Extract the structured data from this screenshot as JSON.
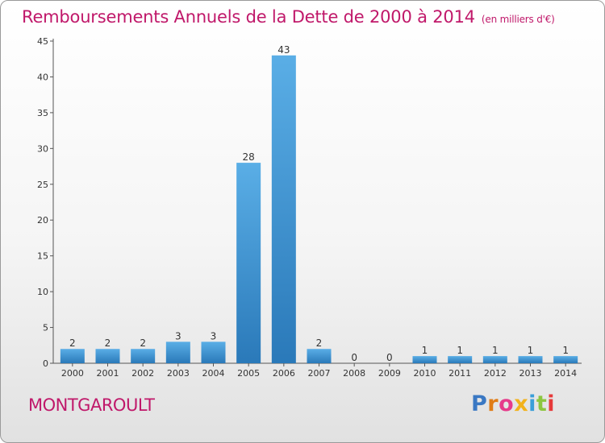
{
  "header": {
    "title": "Remboursements Annuels de la Dette de 2000 à 2014",
    "unit": "(en milliers d'€)"
  },
  "commune": "MONTGAROULT",
  "logo": {
    "letters": [
      "P",
      "r",
      "o",
      "x",
      "i",
      "t",
      "i"
    ],
    "colors": [
      "#3a78c3",
      "#e07c16",
      "#e63a8a",
      "#f2b21c",
      "#3a9fd8",
      "#8cc63f",
      "#e63a3a"
    ],
    "name": "Proxiti"
  },
  "colors": {
    "bar_top": "#5aaee6",
    "bar_bottom": "#2a79b9",
    "axis": "#555555",
    "title": "#c0186a"
  },
  "chart_data": {
    "type": "bar",
    "title": "Remboursements Annuels de la Dette de 2000 à 2014",
    "subtitle": "(en milliers d'€)",
    "xlabel": "",
    "ylabel": "",
    "categories": [
      "2000",
      "2001",
      "2002",
      "2003",
      "2004",
      "2005",
      "2006",
      "2007",
      "2008",
      "2009",
      "2010",
      "2011",
      "2012",
      "2013",
      "2014"
    ],
    "values": [
      2,
      2,
      2,
      3,
      3,
      28,
      43,
      2,
      0,
      0,
      1,
      1,
      1,
      1,
      1
    ],
    "ylim": [
      0,
      45
    ],
    "yticks": [
      0,
      5,
      10,
      15,
      20,
      25,
      30,
      35,
      40,
      45
    ],
    "grid": false,
    "data_labels": true
  }
}
